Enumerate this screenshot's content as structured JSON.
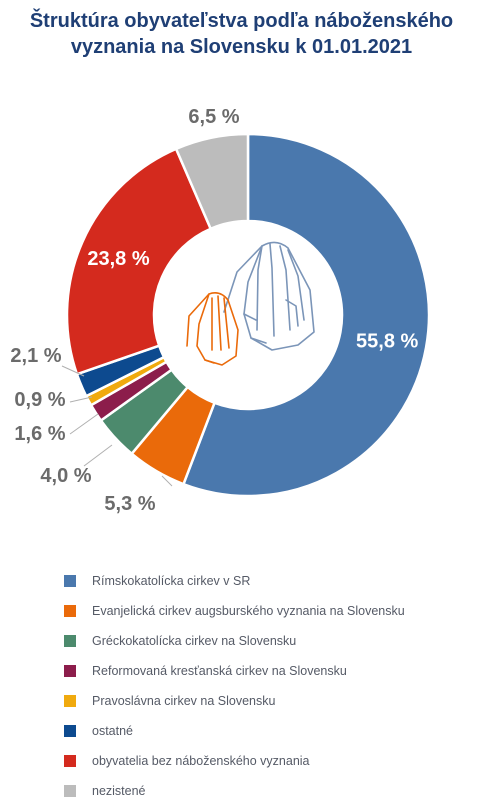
{
  "title_line1": "Štruktúra obyvateľstva podľa náboženského",
  "title_line2": "vyznania na Slovensku k 01.01.2021",
  "icon": "praying-hands-icon",
  "chart_data": {
    "type": "pie",
    "donut": true,
    "slices": [
      {
        "name": "Rímskokatolícka cirkev v SR",
        "value": 55.8,
        "label": "55,8 %",
        "color": "#4a78ad"
      },
      {
        "name": "Evanjelická cirkev augsburského vyznania na Slovensku",
        "value": 5.3,
        "label": "5,3 %",
        "color": "#ea6a0a"
      },
      {
        "name": "Gréckokatolícka cirkev na Slovensku",
        "value": 4.0,
        "label": "4,0 %",
        "color": "#4c8a6d"
      },
      {
        "name": "Reformovaná kresťanská cirkev na Slovensku",
        "value": 1.6,
        "label": "1,6 %",
        "color": "#8c1d4b"
      },
      {
        "name": "Pravoslávna cirkev na Slovensku",
        "value": 0.9,
        "label": "0,9 %",
        "color": "#f0aa0e"
      },
      {
        "name": "ostatné",
        "value": 2.1,
        "label": "2,1 %",
        "color": "#0d4a8f"
      },
      {
        "name": "obyvatelia bez náboženského vyznania",
        "value": 23.8,
        "label": "23,8 %",
        "color": "#d42a1e"
      },
      {
        "name": "nezistené",
        "value": 6.5,
        "label": "6,5 %",
        "color": "#bcbcbc"
      }
    ],
    "legend_position": "bottom"
  }
}
